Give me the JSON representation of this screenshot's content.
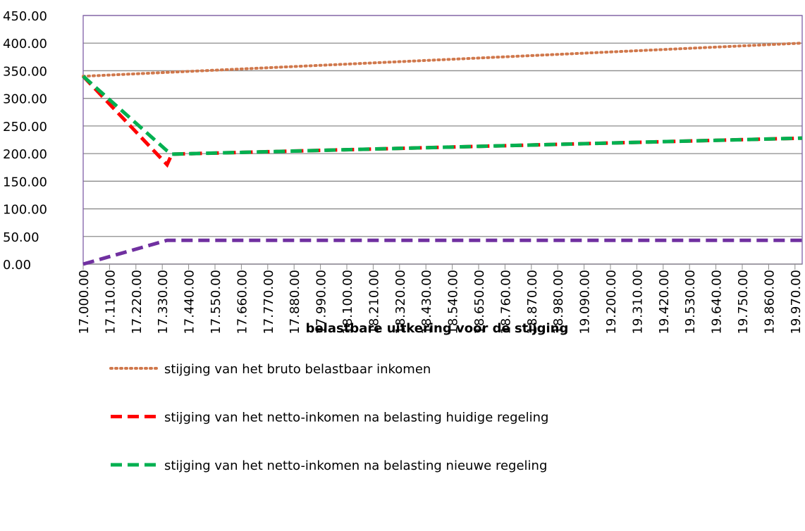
{
  "chart_data": {
    "type": "line",
    "x_label": "belastbare uitkering voor de stijging",
    "x": [
      17000,
      17350,
      17370,
      20000
    ],
    "series": [
      {
        "name": "stijging van het bruto belastbaar inkomen",
        "color": "#d0784c",
        "dash": "dot",
        "values": [
          340,
          347,
          347.4,
          400
        ]
      },
      {
        "name": "stijging van het netto-inkomen na belasting huidige regeling",
        "color": "#ff0000",
        "dash": "dash",
        "values": [
          340,
          180,
          199,
          228
        ]
      },
      {
        "name": "stijging van het netto-inkomen na belasting nieuwe regeling",
        "color": "#00b050",
        "dash": "dash",
        "values": [
          340,
          205,
          199,
          228
        ]
      },
      {
        "color": "#7030a0",
        "dash": "dash",
        "values": [
          0,
          43,
          43,
          43
        ]
      }
    ],
    "xlim": [
      17000,
      20000
    ],
    "xticks": [
      {
        "value": 17000,
        "label": "17.000.00"
      },
      {
        "value": 17110,
        "label": "17.110.00"
      },
      {
        "value": 17220,
        "label": "17.220.00"
      },
      {
        "value": 17330,
        "label": "17.330.00"
      },
      {
        "value": 17440,
        "label": "17.440.00"
      },
      {
        "value": 17550,
        "label": "17.550.00"
      },
      {
        "value": 17660,
        "label": "17.660.00"
      },
      {
        "value": 17770,
        "label": "17.770.00"
      },
      {
        "value": 17880,
        "label": "17.880.00"
      },
      {
        "value": 17990,
        "label": "17.990.00"
      },
      {
        "value": 18100,
        "label": "18.100.00"
      },
      {
        "value": 18210,
        "label": "18.210.00"
      },
      {
        "value": 18320,
        "label": "18.320.00"
      },
      {
        "value": 18430,
        "label": "18.430.00"
      },
      {
        "value": 18540,
        "label": "18.540.00"
      },
      {
        "value": 18650,
        "label": "18.650.00"
      },
      {
        "value": 18760,
        "label": "18.760.00"
      },
      {
        "value": 18870,
        "label": "18.870.00"
      },
      {
        "value": 18980,
        "label": "18.980.00"
      },
      {
        "value": 19090,
        "label": "19.090.00"
      },
      {
        "value": 19200,
        "label": "19.200.00"
      },
      {
        "value": 19310,
        "label": "19.310.00"
      },
      {
        "value": 19420,
        "label": "19.420.00"
      },
      {
        "value": 19530,
        "label": "19.530.00"
      },
      {
        "value": 19640,
        "label": "19.640.00"
      },
      {
        "value": 19750,
        "label": "19.750.00"
      },
      {
        "value": 19860,
        "label": "19.860.00"
      },
      {
        "value": 19970,
        "label": "19.970.00"
      }
    ],
    "ylim": [
      0,
      450
    ],
    "yticks": [
      {
        "value": 0,
        "label": "0.00"
      },
      {
        "value": 50,
        "label": "50.00"
      },
      {
        "value": 100,
        "label": "100.00"
      },
      {
        "value": 150,
        "label": "150.00"
      },
      {
        "value": 200,
        "label": "200.00"
      },
      {
        "value": 250,
        "label": "250.00"
      },
      {
        "value": 300,
        "label": "300.00"
      },
      {
        "value": 350,
        "label": "350.00"
      },
      {
        "value": 400,
        "label": "400.00"
      },
      {
        "value": 450,
        "label": "450.00"
      }
    ],
    "grid": true
  }
}
